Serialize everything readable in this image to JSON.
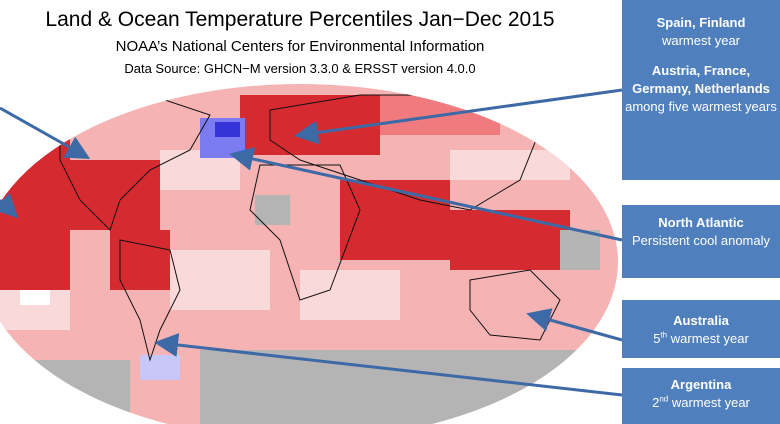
{
  "header": {
    "title": "Land & Ocean Temperature Percentiles Jan−Dec 2015",
    "subtitle": "NOAA’s National Centers for Environmental Information",
    "source": "Data Source: GHCN−M version 3.3.0 & ERSST version 4.0.0"
  },
  "callouts": [
    {
      "title": "Spain, Finland",
      "text": "warmest year"
    },
    {
      "title": "Austria, France, Germany, Netherlands",
      "text": "among five warmest years"
    },
    {
      "title": "North Atlantic",
      "text": "Persistent cool anomaly"
    },
    {
      "title": "Australia",
      "rank": "5",
      "suffix": "th",
      "text": "warmest year"
    },
    {
      "title": "Argentina",
      "rank": "2",
      "suffix": "nd",
      "text": "warmest year"
    }
  ]
}
